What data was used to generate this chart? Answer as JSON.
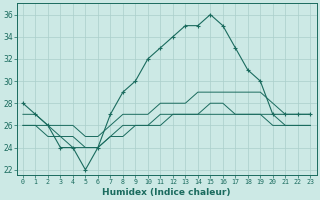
{
  "xlabel": "Humidex (Indice chaleur)",
  "bg_color": "#cce9e5",
  "line_color": "#1a6b5e",
  "grid_color": "#aacfcb",
  "hours": [
    0,
    1,
    2,
    3,
    4,
    5,
    6,
    7,
    8,
    9,
    10,
    11,
    12,
    13,
    14,
    15,
    16,
    17,
    18,
    19,
    20,
    21,
    22,
    23
  ],
  "humidex": [
    28,
    27,
    26,
    24,
    24,
    22,
    24,
    27,
    29,
    30,
    32,
    33,
    34,
    35,
    35,
    36,
    35,
    33,
    31,
    30,
    27,
    27,
    27,
    27
  ],
  "line2": [
    27,
    27,
    26,
    26,
    26,
    25,
    25,
    26,
    27,
    27,
    27,
    28,
    28,
    28,
    29,
    29,
    29,
    29,
    29,
    29,
    28,
    27,
    27,
    27
  ],
  "line3": [
    26,
    26,
    26,
    25,
    25,
    24,
    24,
    25,
    26,
    26,
    26,
    27,
    27,
    27,
    27,
    28,
    28,
    27,
    27,
    27,
    27,
    26,
    26,
    26
  ],
  "line4": [
    26,
    26,
    25,
    25,
    24,
    24,
    24,
    25,
    25,
    26,
    26,
    26,
    27,
    27,
    27,
    27,
    27,
    27,
    27,
    27,
    26,
    26,
    26,
    26
  ],
  "ylim": [
    21.5,
    37
  ],
  "yticks": [
    22,
    24,
    26,
    28,
    30,
    32,
    34,
    36
  ],
  "tick_fontsize": 5.5,
  "xlabel_fontsize": 6.5
}
